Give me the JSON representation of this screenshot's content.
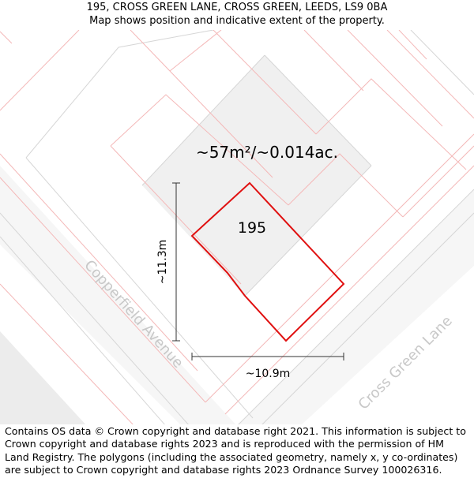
{
  "header": {
    "address": "195, CROSS GREEN LANE, CROSS GREEN, LEEDS, LS9 0BA",
    "subtitle": "Map shows position and indicative extent of the property."
  },
  "map": {
    "area_label": "~57m²/~0.014ac.",
    "plot_label": "195",
    "height_label": "~11.3m",
    "width_label": "~10.9m",
    "streets": [
      "Copperfield Avenue",
      "Cross Green Lane"
    ],
    "colors": {
      "boundary": "#e01010",
      "parcel_lines": "#f4b8b8",
      "road_fill": "#f5f5f5",
      "building_fill": "#f0f0f0",
      "dim_line": "#333333",
      "street_text": "#c8c8c8"
    }
  },
  "footer": {
    "copyright": "Contains OS data © Crown copyright and database right 2021. This information is subject to Crown copyright and database rights 2023 and is reproduced with the permission of HM Land Registry. The polygons (including the associated geometry, namely x, y co-ordinates) are subject to Crown copyright and database rights 2023 Ordnance Survey 100026316."
  }
}
